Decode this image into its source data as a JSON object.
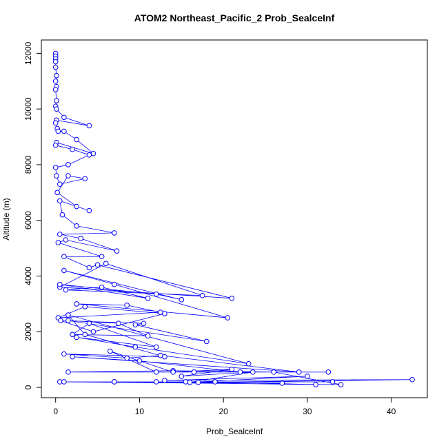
{
  "chart_data": {
    "type": "line",
    "marker": "open-circle",
    "title": "ATOM2 Northeast_Pacific_2 Prob_SealceInf",
    "xlabel": "Prob_SealceInf",
    "ylabel": "Altitude (m)",
    "xlim": [
      -1.7,
      44.3
    ],
    "ylim": [
      -370,
      12480
    ],
    "xticks": [
      0,
      10,
      20,
      30,
      40
    ],
    "yticks": [
      0,
      2000,
      4000,
      6000,
      8000,
      10000,
      12000
    ],
    "x": [
      0,
      0,
      0,
      0,
      0,
      0.1,
      0,
      0.1,
      0,
      0.1,
      0,
      0.1,
      1,
      4,
      0.1,
      0,
      0.2,
      0.3,
      1,
      2.5,
      4.5,
      0.1,
      0,
      2,
      4,
      1.5,
      0,
      0.1,
      0.5,
      3.5,
      1.5,
      0.2,
      2.5,
      4,
      0.5,
      0.8,
      2.5,
      7,
      0.5,
      3,
      7.3,
      1.2,
      0.3,
      5.5,
      1,
      4,
      5,
      21,
      0.5,
      6,
      17.5,
      1.2,
      5.5,
      11,
      0.5,
      12,
      15,
      1,
      7,
      20.5,
      2.5,
      8.5,
      12.5,
      0.3,
      3.5,
      13,
      4.5,
      0.6,
      10.5,
      9.5,
      18,
      1.5,
      7.5,
      11,
      2,
      4,
      12,
      2.5,
      9.5,
      23,
      1.5,
      3.5,
      13,
      1,
      8.5,
      12.5,
      29,
      2,
      10,
      22,
      32.5,
      1.5,
      14,
      26,
      34,
      0.5,
      12,
      27,
      7,
      15.5,
      33,
      1,
      19,
      31,
      7,
      17,
      42.5,
      13,
      30,
      16,
      23.5,
      15,
      21,
      14,
      6.5,
      12,
      16.5
    ],
    "series": [
      {
        "color": "#0000ff",
        "values": [
          12000,
          11900,
          11800,
          11700,
          11500,
          11200,
          11000,
          10800,
          10700,
          10300,
          10100,
          10000,
          9700,
          9400,
          9600,
          9500,
          9300,
          9200,
          9200,
          8900,
          8400,
          8800,
          8700,
          8550,
          8350,
          8000,
          7900,
          7600,
          7300,
          7500,
          7600,
          7000,
          6500,
          6350,
          6700,
          6200,
          5800,
          5550,
          5500,
          5350,
          4900,
          5300,
          5200,
          4700,
          4700,
          4300,
          4400,
          3200,
          3600,
          4450,
          3300,
          3500,
          3600,
          3200,
          3700,
          3350,
          3150,
          4200,
          3700,
          2500,
          3000,
          2950,
          2700,
          2500,
          2900,
          2650,
          2000,
          2400,
          2300,
          2250,
          1650,
          2400,
          2300,
          1850,
          1900,
          2300,
          1450,
          1800,
          1450,
          850,
          2600,
          1900,
          1100,
          1200,
          1050,
          1150,
          550,
          1100,
          950,
          550,
          550,
          550,
          600,
          550,
          100,
          200,
          200,
          150,
          200,
          200,
          200,
          200,
          200,
          100,
          200,
          180,
          280,
          250,
          400,
          180,
          550,
          400,
          650,
          550,
          1300,
          550,
          550
        ]
      }
    ]
  }
}
